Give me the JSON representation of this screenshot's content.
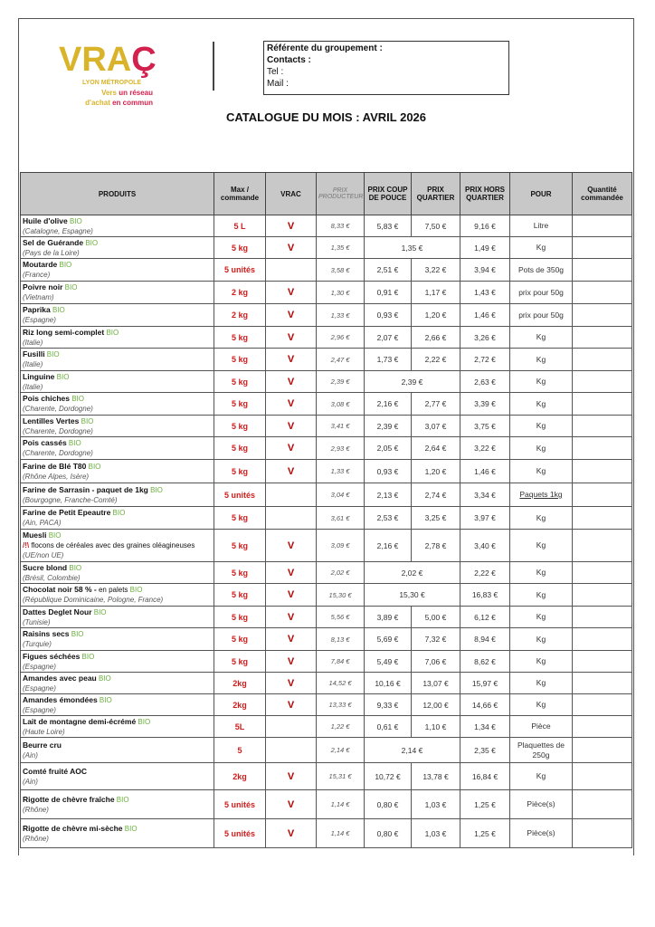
{
  "logo": {
    "word_1": "VRA",
    "word_2": "Ç",
    "sub": "LYON MÉTROPOLE",
    "tag_1a": "Vers ",
    "tag_1b": "un réseau",
    "tag_2a": "d'achat ",
    "tag_2b": "en commun",
    "colors": {
      "yellow": "#d9b42a",
      "red": "#d3214e"
    }
  },
  "contact_box": {
    "referente": "Référente du groupement :",
    "contacts": "Contacts :",
    "tel": "Tel :",
    "mail": "Mail :"
  },
  "title": "CATALOGUE DU MOIS : AVRIL 2026",
  "table": {
    "headers": [
      "PRODUITS",
      "Max / commande",
      "VRAC",
      "PRIX PRODUCTEUR",
      "PRIX COUP DE POUCE",
      "PRIX QUARTIER",
      "PRIX HORS QUARTIER",
      "POUR",
      "Quantité commandée"
    ],
    "bio_label": "BIO",
    "rows": [
      {
        "name": "Huile d'olive",
        "bio": true,
        "origin": "(Catalogne, Espagne)",
        "max": "5 L",
        "vrac": "V",
        "producteur": "8,33 €",
        "coup": "5,83 €",
        "quartier": "7,50 €",
        "hors": "9,16 €",
        "pour": "Litre"
      },
      {
        "name": "Sel de Guérande",
        "bio": true,
        "origin": "(Pays de la Loire)",
        "max": "5 kg",
        "vrac": "V",
        "producteur": "1,35 €",
        "merged": "1,35 €",
        "hors": "1,49 €",
        "pour": "Kg"
      },
      {
        "name": "Moutarde",
        "bio": true,
        "origin": "(France)",
        "max": "5 unités",
        "vrac": "",
        "producteur": "3,58 €",
        "coup": "2,51 €",
        "quartier": "3,22 €",
        "hors": "3,94 €",
        "pour": "Pots de 350g"
      },
      {
        "name": "Poivre noir",
        "bio": true,
        "origin": "(Vietnam)",
        "max": "2 kg",
        "vrac": "V",
        "producteur": "1,30 €",
        "coup": "0,91 €",
        "quartier": "1,17 €",
        "hors": "1,43 €",
        "pour": "prix pour 50g"
      },
      {
        "name": "Paprika",
        "bio": true,
        "origin": "(Espagne)",
        "max": "2 kg",
        "vrac": "V",
        "producteur": "1,33 €",
        "coup": "0,93 €",
        "quartier": "1,20 €",
        "hors": "1,46 €",
        "pour": "prix pour 50g"
      },
      {
        "name": "Riz long semi-complet",
        "bio": true,
        "origin": "(Italie)",
        "max": "5 kg",
        "vrac": "V",
        "producteur": "2,96 €",
        "coup": "2,07 €",
        "quartier": "2,66 €",
        "hors": "3,26 €",
        "pour": "Kg"
      },
      {
        "name": "Fusilli",
        "bio": true,
        "origin": "(Italie)",
        "max": "5 kg",
        "vrac": "V",
        "producteur": "2,47 €",
        "coup": "1,73 €",
        "quartier": "2,22 €",
        "hors": "2,72 €",
        "pour": "Kg"
      },
      {
        "name": "Linguine",
        "bio": true,
        "origin": "(Italie)",
        "max": "5 kg",
        "vrac": "V",
        "producteur": "2,39 €",
        "merged": "2,39 €",
        "hors": "2,63 €",
        "pour": "Kg"
      },
      {
        "name": "Pois chiches",
        "bio": true,
        "origin": "(Charente, Dordogne)",
        "max": "5 kg",
        "vrac": "V",
        "producteur": "3,08 €",
        "coup": "2,16 €",
        "quartier": "2,77 €",
        "hors": "3,39 €",
        "pour": "Kg"
      },
      {
        "name": "Lentilles Vertes",
        "bio": true,
        "origin": "(Charente, Dordogne)",
        "max": "5 kg",
        "vrac": "V",
        "producteur": "3,41 €",
        "coup": "2,39 €",
        "quartier": "3,07 €",
        "hors": "3,75 €",
        "pour": "Kg"
      },
      {
        "name": "Pois cassés",
        "bio": true,
        "origin": "(Charente, Dordogne)",
        "max": "5 kg",
        "vrac": "V",
        "producteur": "2,93 €",
        "coup": "2,05 €",
        "quartier": "2,64 €",
        "hors": "3,22 €",
        "pour": "Kg"
      },
      {
        "name": "Farine de Blé T80",
        "bio": true,
        "origin": "(Rhône Alpes, Isère)",
        "max": "5 kg",
        "vrac": "V",
        "producteur": "1,33 €",
        "coup": "0,93 €",
        "quartier": "1,20 €",
        "hors": "1,46 €",
        "pour": "Kg"
      },
      {
        "name": "Farine de Sarrasin - paquet de 1kg",
        "bio": true,
        "origin": "(Bourgogne, Franche-Comté)",
        "max": "5 unités",
        "vrac": "",
        "producteur": "3,04 €",
        "coup": "2,13 €",
        "quartier": "2,74 €",
        "hors": "3,34 €",
        "pour": "Paquets 1kg",
        "pour_underline": true
      },
      {
        "name": "Farine de Petit Epeautre",
        "bio": true,
        "origin": "(Ain, PACA)",
        "max": "5 kg",
        "vrac": "",
        "producteur": "3,61 €",
        "coup": "2,53 €",
        "quartier": "3,25 €",
        "hors": "3,97 €",
        "pour": "Kg"
      },
      {
        "name": "Muesli",
        "bio": true,
        "warning": "/!\\",
        "note": "flocons de céréales avec des graines oléagineuses",
        "origin": "(UE/non UE)",
        "max": "5 kg",
        "vrac": "V",
        "producteur": "3,09 €",
        "coup": "2,16 €",
        "quartier": "2,78 €",
        "hors": "3,40 €",
        "pour": "Kg"
      },
      {
        "name": "Sucre blond",
        "bio": true,
        "origin": "(Brésil, Colombie)",
        "max": "5 kg",
        "vrac": "V",
        "producteur": "2,02 €",
        "merged": "2,02 €",
        "hors": "2,22 €",
        "pour": "Kg"
      },
      {
        "name": "Chocolat noir 58 % -",
        "extra": " en palets",
        "bio": true,
        "origin": "(République Dominicaine, Pologne, France)",
        "max": "5 kg",
        "vrac": "V",
        "producteur": "15,30 €",
        "merged": "15,30 €",
        "hors": "16,83 €",
        "pour": "Kg"
      },
      {
        "name": "Dattes Deglet Nour",
        "bio": true,
        "origin": "(Tunisie)",
        "max": "5 kg",
        "vrac": "V",
        "producteur": "5,56 €",
        "coup": "3,89 €",
        "quartier": "5,00 €",
        "hors": "6,12 €",
        "pour": "Kg"
      },
      {
        "name": "Raisins secs",
        "bio": true,
        "origin": "(Turquie)",
        "max": "5 kg",
        "vrac": "V",
        "producteur": "8,13 €",
        "coup": "5,69 €",
        "quartier": "7,32 €",
        "hors": "8,94 €",
        "pour": "Kg"
      },
      {
        "name": "Figues séchées",
        "bio": true,
        "origin": "(Espagne)",
        "max": "5 kg",
        "vrac": "V",
        "producteur": "7,84 €",
        "coup": "5,49 €",
        "quartier": "7,06 €",
        "hors": "8,62 €",
        "pour": "Kg"
      },
      {
        "name": "Amandes avec peau",
        "bio": true,
        "origin": "(Espagne)",
        "max": "2kg",
        "vrac": "V",
        "producteur": "14,52 €",
        "coup": "10,16 €",
        "quartier": "13,07 €",
        "hors": "15,97 €",
        "pour": "Kg"
      },
      {
        "name": "Amandes émondées",
        "bio": true,
        "origin": "(Espagne)",
        "max": "2kg",
        "vrac": "V",
        "producteur": "13,33 €",
        "coup": "9,33 €",
        "quartier": "12,00 €",
        "hors": "14,66 €",
        "pour": "Kg"
      },
      {
        "name": "Lait de montagne demi-écrémé",
        "bio": true,
        "origin": "(Haute Loire)",
        "max": "5L",
        "vrac": "",
        "producteur": "1,22 €",
        "coup": "0,61 €",
        "quartier": "1,10 €",
        "hors": "1,34 €",
        "pour": "Pièce"
      },
      {
        "name": "Beurre cru",
        "bio": false,
        "origin": "(Ain)",
        "max": "5",
        "vrac": "",
        "producteur": "2,14 €",
        "merged": "2,14 €",
        "hors": "2,35 €",
        "pour": "Plaquettes de 250g"
      },
      {
        "name": "Comté fruité AOC",
        "bio": false,
        "origin": "(Ain)",
        "max": "2kg",
        "vrac": "V",
        "producteur": "15,31 €",
        "coup": "10,72 €",
        "quartier": "13,78 €",
        "hors": "16,84 €",
        "pour": "Kg"
      },
      {
        "name": "Rigotte de chèvre fraîche",
        "bio": true,
        "origin": "(Rhône)",
        "max": "5 unités",
        "vrac": "V",
        "producteur": "1,14 €",
        "coup": "0,80 €",
        "quartier": "1,03 €",
        "hors": "1,25 €",
        "pour": "Pièce(s)"
      },
      {
        "name": "Rigotte de chèvre mi-sèche",
        "bio": true,
        "origin": "(Rhône)",
        "max": "5 unités",
        "vrac": "V",
        "producteur": "1,14 €",
        "coup": "0,80 €",
        "quartier": "1,03 €",
        "hors": "1,25 €",
        "pour": "Pièce(s)"
      }
    ]
  }
}
